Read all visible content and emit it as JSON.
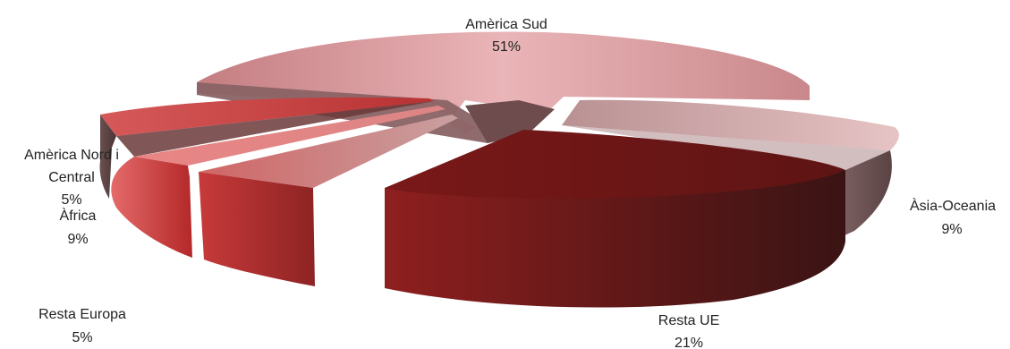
{
  "chart_data": {
    "type": "pie",
    "style": "3d-exploded",
    "title": "",
    "slices": [
      {
        "name": "Amèrica Sud",
        "value": 51,
        "value_label": "51%",
        "color": "#c97f83"
      },
      {
        "name": "Àsia-Oceania",
        "value": 9,
        "value_label": "9%",
        "color": "#c9a3a5"
      },
      {
        "name": "Resta UE",
        "value": 21,
        "value_label": "21%",
        "color": "#7a1f1f"
      },
      {
        "name": "Resta Europa",
        "value": 5,
        "value_label": "5%",
        "color": "#b33a3a"
      },
      {
        "name": "Àfrica",
        "value": 9,
        "value_label": "9%",
        "color": "#d84a4a"
      },
      {
        "name": "Amèrica Nord i Central",
        "label_lines": [
          "Amèrica Nord i",
          "Central"
        ],
        "value": 5,
        "value_label": "5%",
        "color": "#c23b3b"
      }
    ],
    "legend": "none",
    "labels": "outside"
  }
}
